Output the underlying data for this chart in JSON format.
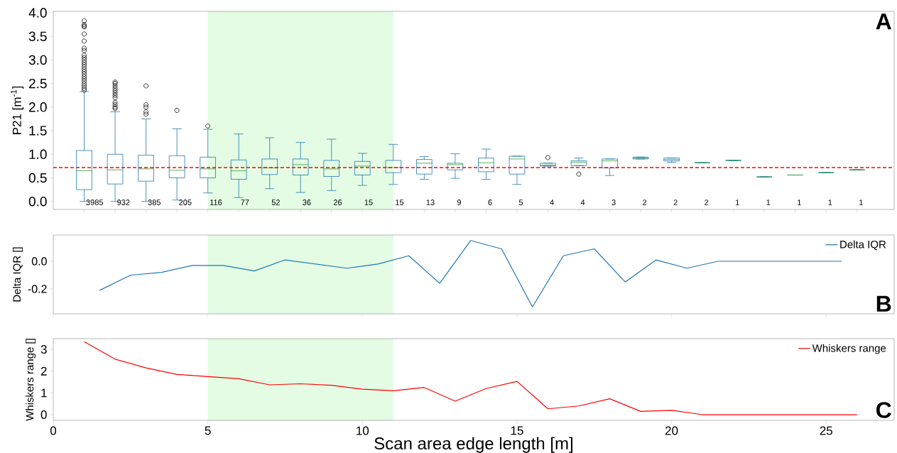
{
  "chart_data": [
    {
      "type": "box",
      "ylabel": "P21 [m$^{-1}$]",
      "color": "#1f77b4",
      "categories": [
        "3985",
        "932",
        "385",
        "205",
        "116",
        "77",
        "52",
        "36",
        "26",
        "15",
        "15",
        "13",
        "9",
        "6",
        "5",
        "4",
        "4",
        "3",
        "2",
        "2",
        "2",
        "1",
        "1",
        "1",
        "1",
        "1"
      ],
      "boxes": [
        {
          "low": 0,
          "q1": 0.25,
          "median": 0.65,
          "q3": 1.08,
          "high": 2.33,
          "outliers": [
            2.36,
            2.4,
            2.45,
            2.5,
            2.55,
            2.6,
            2.65,
            2.7,
            2.75,
            2.8,
            2.85,
            2.9,
            2.95,
            3.0,
            3.05,
            3.1,
            3.2,
            3.25,
            3.4,
            3.55,
            3.7,
            3.72,
            3.75,
            3.83
          ]
        },
        {
          "low": 0,
          "q1": 0.37,
          "median": 0.67,
          "q3": 1.0,
          "high": 1.9,
          "outliers": [
            1.97,
            2.0,
            2.05,
            2.1,
            2.2,
            2.25,
            2.3,
            2.35,
            2.4,
            2.45,
            2.5,
            2.53
          ]
        },
        {
          "low": 0,
          "q1": 0.43,
          "median": 0.69,
          "q3": 0.98,
          "high": 1.75,
          "outliers": [
            1.85,
            1.9,
            2.0,
            2.05,
            2.45
          ]
        },
        {
          "low": 0.03,
          "q1": 0.5,
          "median": 0.66,
          "q3": 0.97,
          "high": 1.54,
          "outliers": [
            1.93
          ]
        },
        {
          "low": 0.18,
          "q1": 0.5,
          "median": 0.69,
          "q3": 0.94,
          "high": 1.53,
          "outliers": [
            1.6
          ]
        },
        {
          "low": 0.08,
          "q1": 0.47,
          "median": 0.65,
          "q3": 0.88,
          "high": 1.43
        },
        {
          "low": 0.27,
          "q1": 0.57,
          "median": 0.71,
          "q3": 0.9,
          "high": 1.35
        },
        {
          "low": 0.19,
          "q1": 0.56,
          "median": 0.78,
          "q3": 0.9,
          "high": 1.25
        },
        {
          "low": 0.23,
          "q1": 0.53,
          "median": 0.69,
          "q3": 0.87,
          "high": 1.32
        },
        {
          "low": 0.34,
          "q1": 0.56,
          "median": 0.75,
          "q3": 0.85,
          "high": 1.02
        },
        {
          "low": 0.36,
          "q1": 0.61,
          "median": 0.72,
          "q3": 0.87,
          "high": 1.21
        },
        {
          "low": 0.47,
          "q1": 0.58,
          "median": 0.81,
          "q3": 0.89,
          "high": 0.95
        },
        {
          "low": 0.49,
          "q1": 0.67,
          "median": 0.78,
          "q3": 0.81,
          "high": 1.01
        },
        {
          "low": 0.47,
          "q1": 0.63,
          "median": 0.82,
          "q3": 0.92,
          "high": 1.11
        },
        {
          "low": 0.36,
          "q1": 0.58,
          "median": 0.9,
          "q3": 0.96,
          "high": 0.96
        },
        {
          "low": 0.75,
          "q1": 0.75,
          "median": 0.77,
          "q3": 0.81,
          "high": 0.81,
          "outliers": [
            0.93
          ]
        },
        {
          "low": 0.76,
          "q1": 0.76,
          "median": 0.83,
          "q3": 0.86,
          "high": 0.92,
          "outliers": [
            0.58
          ]
        },
        {
          "low": 0.55,
          "q1": 0.71,
          "median": 0.86,
          "q3": 0.9,
          "high": 0.9
        },
        {
          "low": 0.9,
          "q1": 0.9,
          "median": 0.92,
          "q3": 0.94,
          "high": 0.94
        },
        {
          "low": 0.83,
          "q1": 0.86,
          "median": 0.89,
          "q3": 0.92,
          "high": 0.92
        },
        {
          "low": 0.82,
          "q1": 0.82,
          "median": 0.82,
          "q3": 0.82,
          "high": 0.82
        },
        {
          "low": 0.87,
          "q1": 0.87,
          "median": 0.87,
          "q3": 0.87,
          "high": 0.87
        },
        {
          "low": 0.52,
          "q1": 0.52,
          "median": 0.52,
          "q3": 0.52,
          "high": 0.52
        },
        {
          "low": 0.56,
          "q1": 0.56,
          "median": 0.56,
          "q3": 0.56,
          "high": 0.56
        },
        {
          "low": 0.61,
          "q1": 0.61,
          "median": 0.61,
          "q3": 0.61,
          "high": 0.61
        },
        {
          "low": 0.67,
          "q1": 0.67,
          "median": 0.67,
          "q3": 0.67,
          "high": 0.67
        }
      ],
      "ylim": [
        -0.17,
        4.03
      ],
      "yticks": [
        {
          "value": 0,
          "label": "0.0"
        },
        {
          "value": 0.5,
          "label": "0.5"
        },
        {
          "value": 1,
          "label": "1.0"
        },
        {
          "value": 1.5,
          "label": "1.5"
        },
        {
          "value": 2,
          "label": "2.0"
        },
        {
          "value": 2.5,
          "label": "2.5"
        },
        {
          "value": 3,
          "label": "3.0"
        },
        {
          "value": 3.5,
          "label": "3.5"
        },
        {
          "value": 4,
          "label": "4.0"
        }
      ],
      "ref_lines": [
        {
          "axis": "y",
          "value": 0.72,
          "color": "#ff0000",
          "line_style": "dashed"
        }
      ],
      "annotations": [
        "A"
      ]
    },
    {
      "type": "line",
      "ylabel": "Delta IQR []",
      "x": [
        1.5,
        2.5,
        3.5,
        4.5,
        5.5,
        6.5,
        7.5,
        8.5,
        9.5,
        10.5,
        11.5,
        12.5,
        13.5,
        14.5,
        15.5,
        16.5,
        17.5,
        18.5,
        19.5,
        20.5,
        21.5,
        22.5,
        23.5,
        24.5,
        25.5
      ],
      "series": [
        {
          "name": "Delta IQR",
          "color": "#1f77b4",
          "values": [
            -0.21,
            -0.1,
            -0.08,
            -0.03,
            -0.03,
            -0.07,
            0.01,
            -0.02,
            -0.05,
            -0.02,
            0.04,
            -0.16,
            0.15,
            0.09,
            -0.33,
            0.04,
            0.09,
            -0.15,
            0.01,
            -0.05,
            0,
            0,
            0,
            0,
            0
          ]
        }
      ],
      "xlim": [
        0,
        27.2
      ],
      "ylim": [
        -0.38,
        0.19
      ],
      "xticks": [
        0,
        5,
        10,
        15,
        20,
        25
      ],
      "yticks": [
        {
          "value": -0.2,
          "label": "-0.2"
        },
        {
          "value": 0,
          "label": "0.0"
        }
      ],
      "tick_labels": "y",
      "legend": "top right",
      "bands": [
        {
          "axis": "x",
          "from": 5,
          "to": 11,
          "color": "#e3fce3"
        }
      ],
      "annotations": [
        "B"
      ]
    },
    {
      "type": "line",
      "ylabel": "Whiskers range []",
      "xlabel": "Scan area edge length [m]",
      "x": [
        1,
        2,
        3,
        4,
        5,
        6,
        7,
        8,
        9,
        10,
        11,
        12,
        13,
        14,
        15,
        16,
        17,
        18,
        19,
        20,
        21,
        22,
        23,
        24,
        25,
        26
      ],
      "series": [
        {
          "name": "Whiskers range",
          "color": "#ff0000",
          "values": [
            3.35,
            2.55,
            2.15,
            1.85,
            1.75,
            1.65,
            1.37,
            1.42,
            1.35,
            1.17,
            1.1,
            1.25,
            0.62,
            1.2,
            1.53,
            0.27,
            0.4,
            0.73,
            0.15,
            0.2,
            0,
            0,
            0,
            0,
            0,
            0
          ]
        }
      ],
      "xlim": [
        0,
        27.2
      ],
      "ylim": [
        -0.26,
        3.49
      ],
      "xticks": [
        0,
        5,
        10,
        15,
        20,
        25
      ],
      "yticks": [
        0,
        1,
        2,
        3
      ],
      "legend": "top right",
      "bands": [
        {
          "axis": "x",
          "from": 5,
          "to": 11,
          "color": "#e3fce3"
        }
      ],
      "annotations": [
        "C"
      ]
    }
  ]
}
